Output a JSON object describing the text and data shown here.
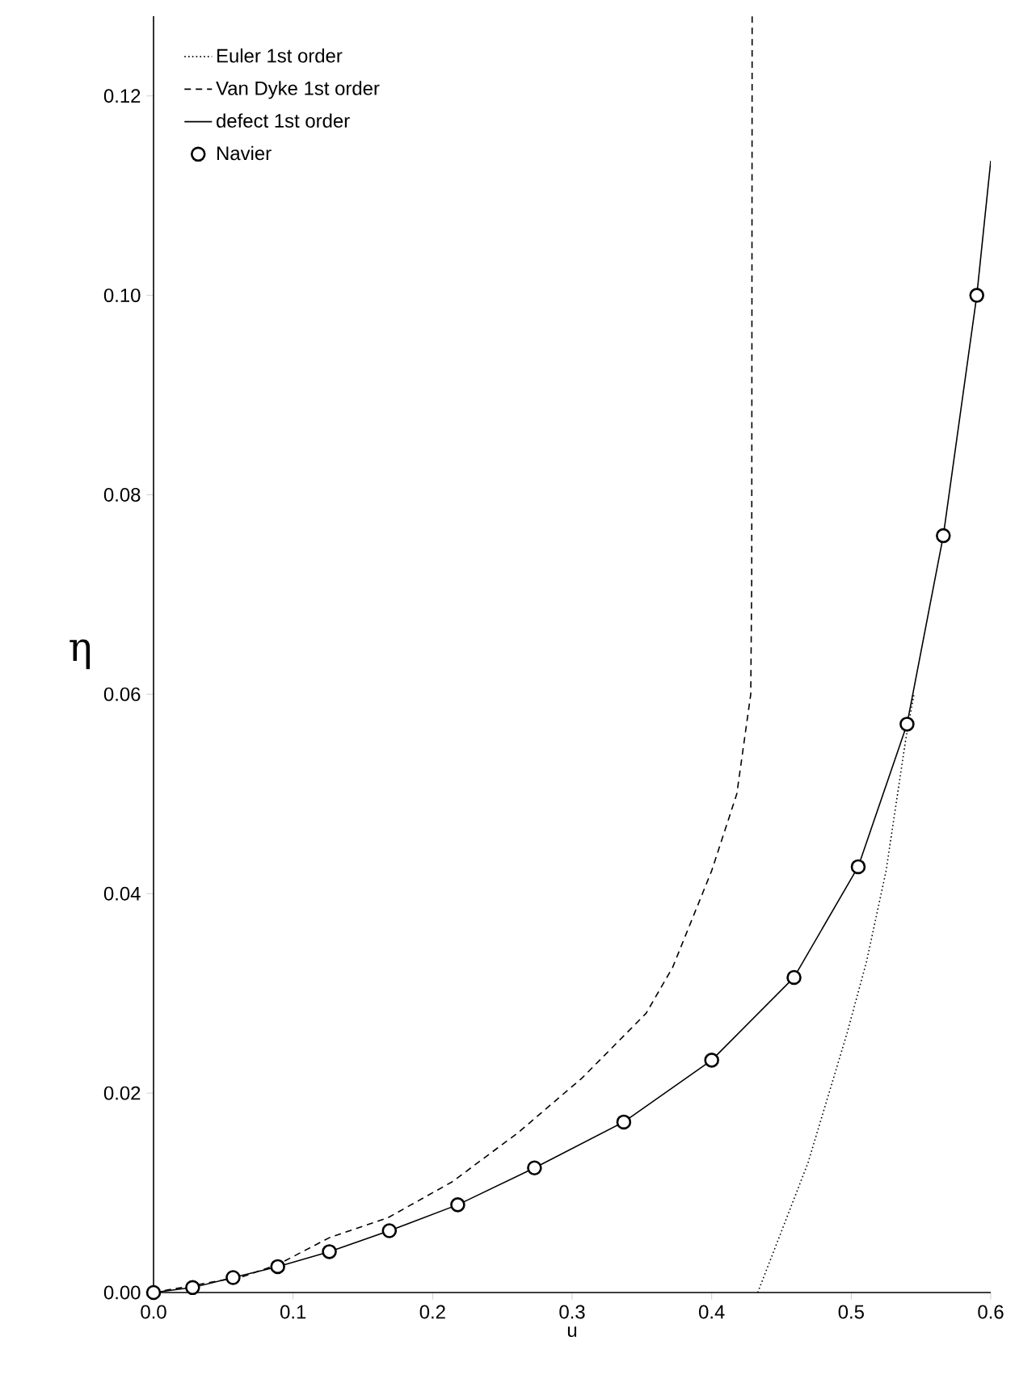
{
  "chart_data": {
    "type": "line",
    "xlabel": "u",
    "ylabel": "η",
    "xlim": [
      0,
      0.6
    ],
    "ylim": [
      0,
      0.128
    ],
    "xticks": [
      {
        "value": 0,
        "label": "0.0"
      },
      {
        "value": 0.1,
        "label": "0.1"
      },
      {
        "value": 0.2,
        "label": "0.2"
      },
      {
        "value": 0.3,
        "label": "0.3"
      },
      {
        "value": 0.4,
        "label": "0.4"
      },
      {
        "value": 0.5,
        "label": "0.5"
      },
      {
        "value": 0.6,
        "label": "0.6"
      }
    ],
    "yticks": [
      {
        "value": 0,
        "label": "0.00"
      },
      {
        "value": 0.02,
        "label": "0.02"
      },
      {
        "value": 0.04,
        "label": "0.04"
      },
      {
        "value": 0.06,
        "label": "0.06"
      },
      {
        "value": 0.08,
        "label": "0.08"
      },
      {
        "value": 0.1,
        "label": "0.10"
      },
      {
        "value": 0.12,
        "label": "0.12"
      }
    ],
    "grid": false,
    "legend": "top left",
    "series": [
      {
        "name": "Euler 1st order",
        "color": "#000000",
        "line_style": "dotted",
        "marker": "none",
        "x": [
          0.433,
          0.469,
          0.497,
          0.511,
          0.525,
          0.539,
          0.545
        ],
        "values": [
          0,
          0.013,
          0.026,
          0.0332,
          0.0423,
          0.0554,
          0.06
        ]
      },
      {
        "name": "Van Dyke 1st order",
        "color": "#000000",
        "line_style": "dashed",
        "marker": "none",
        "x": [
          0,
          0.064,
          0.089,
          0.126,
          0.168,
          0.214,
          0.261,
          0.307,
          0.353,
          0.372,
          0.4,
          0.418,
          0.428,
          0.4287,
          0.429
        ],
        "values": [
          0,
          0.0016,
          0.0028,
          0.0055,
          0.0075,
          0.0111,
          0.016,
          0.0215,
          0.028,
          0.0326,
          0.0423,
          0.05,
          0.06,
          0.0717,
          0.128
        ]
      },
      {
        "name": "defect 1st order",
        "color": "#000000",
        "line_style": "solid",
        "marker": "none",
        "x": [
          0,
          0.028,
          0.057,
          0.089,
          0.126,
          0.169,
          0.218,
          0.273,
          0.337,
          0.4,
          0.459,
          0.505,
          0.54,
          0.566,
          0.59,
          0.6
        ],
        "values": [
          0,
          0.0005,
          0.0015,
          0.0026,
          0.0041,
          0.0062,
          0.0088,
          0.0125,
          0.0171,
          0.0233,
          0.0316,
          0.0427,
          0.057,
          0.0759,
          0.1,
          0.1135
        ]
      },
      {
        "name": "Navier",
        "type": "scatter",
        "color": "#000000",
        "marker": "circle",
        "x": [
          0,
          0.028,
          0.057,
          0.089,
          0.126,
          0.169,
          0.218,
          0.273,
          0.337,
          0.4,
          0.459,
          0.505,
          0.54,
          0.566,
          0.59
        ],
        "values": [
          0,
          0.0005,
          0.0015,
          0.0026,
          0.0041,
          0.0062,
          0.0088,
          0.0125,
          0.0171,
          0.0233,
          0.0316,
          0.0427,
          0.057,
          0.0759,
          0.1
        ]
      }
    ]
  }
}
